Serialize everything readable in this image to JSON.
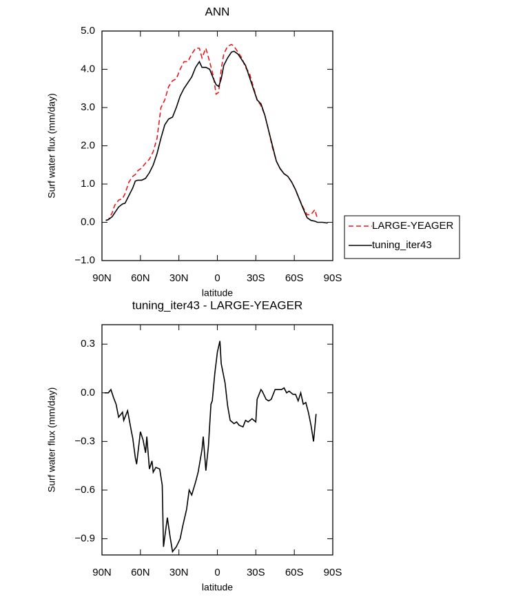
{
  "chart_data": [
    {
      "type": "line",
      "title": "ANN",
      "xlabel": "latitude",
      "ylabel": "Surf water flux (mm/day)",
      "x": [
        87,
        85,
        82,
        80,
        77,
        74,
        72,
        69,
        66,
        64,
        62,
        59,
        56,
        53,
        50,
        47,
        44,
        41,
        38,
        35,
        32,
        29,
        26,
        23,
        20,
        17,
        14,
        12,
        9,
        6,
        3,
        1,
        -1,
        -3,
        -5,
        -8,
        -11,
        -13,
        -16,
        -19,
        -22,
        -25,
        -28,
        -31,
        -34,
        -37,
        -40,
        -43,
        -46,
        -49,
        -52,
        -55,
        -58,
        -61,
        -64,
        -67,
        -70,
        -73,
        -76,
        -78,
        -82,
        -86
      ],
      "series": [
        {
          "name": "LARGE-YEAGER",
          "color": "#e8161b",
          "linestyle": "dashed",
          "values": [
            0.05,
            0.07,
            0.25,
            0.45,
            0.58,
            0.62,
            0.75,
            1.05,
            1.2,
            1.25,
            1.35,
            1.42,
            1.55,
            1.65,
            1.85,
            2.2,
            3.0,
            3.2,
            3.55,
            3.7,
            3.75,
            4.0,
            4.2,
            4.2,
            4.4,
            4.55,
            4.55,
            4.3,
            4.55,
            4.2,
            3.8,
            3.35,
            3.4,
            4.0,
            4.4,
            4.6,
            4.65,
            4.6,
            4.45,
            4.3,
            4.05,
            3.9,
            3.55,
            3.2,
            3.05,
            2.8,
            2.4,
            1.95,
            1.6,
            1.4,
            1.27,
            1.2,
            1.05,
            0.85,
            0.6,
            0.38,
            0.2,
            0.2,
            0.33,
            0.1,
            null,
            null
          ]
        },
        {
          "name": "tuning_iter43",
          "color": "#000000",
          "linestyle": "solid",
          "values": [
            0.05,
            0.07,
            0.15,
            0.25,
            0.4,
            0.48,
            0.5,
            0.7,
            0.9,
            1.08,
            1.1,
            1.1,
            1.15,
            1.3,
            1.5,
            1.8,
            2.2,
            2.55,
            2.7,
            2.75,
            3.0,
            3.3,
            3.5,
            3.65,
            3.8,
            4.05,
            4.2,
            4.05,
            4.05,
            4.0,
            3.75,
            3.6,
            3.55,
            3.75,
            4.1,
            4.3,
            4.45,
            4.47,
            4.4,
            4.25,
            4.1,
            3.8,
            3.5,
            3.2,
            3.1,
            2.8,
            2.4,
            2.0,
            1.6,
            1.4,
            1.27,
            1.2,
            1.05,
            0.85,
            0.6,
            0.35,
            0.12,
            0.05,
            0.03,
            0.0,
            0.0,
            -0.02
          ]
        }
      ],
      "xlim": [
        90,
        -90
      ],
      "xticks": [
        {
          "value": 90,
          "label": "90N"
        },
        {
          "value": 60,
          "label": "60N"
        },
        {
          "value": 30,
          "label": "30N"
        },
        0,
        {
          "value": -30,
          "label": "30S"
        },
        {
          "value": -60,
          "label": "60S"
        },
        {
          "value": -90,
          "label": "90S"
        }
      ],
      "ylim": [
        -1,
        5
      ],
      "yticks": [
        {
          "value": -1,
          "label": "−1.0"
        },
        {
          "value": 0,
          "label": "0.0"
        },
        {
          "value": 1,
          "label": "1.0"
        },
        {
          "value": 2,
          "label": "2.0"
        },
        {
          "value": 3,
          "label": "3.0"
        },
        {
          "value": 4,
          "label": "4.0"
        },
        {
          "value": 5,
          "label": "5.0"
        }
      ],
      "legend": "right"
    },
    {
      "type": "line",
      "title": "tuning_iter43 - LARGE-YEAGER",
      "xlabel": "latitude",
      "ylabel": "Surf water flux (mm/day)",
      "x": [
        88,
        85,
        83,
        81,
        79,
        77,
        74,
        73,
        70,
        67,
        66,
        64,
        63,
        60,
        58,
        56,
        55,
        53,
        51,
        50,
        48,
        45,
        43,
        42,
        39,
        37,
        35,
        32,
        29,
        27,
        24,
        22,
        20,
        17,
        15,
        12,
        11,
        9,
        7,
        5,
        4,
        2,
        0,
        -2,
        -3,
        -6,
        -8,
        -10,
        -13,
        -15,
        -17,
        -20,
        -22,
        -24,
        -27,
        -30,
        -31,
        -34,
        -35,
        -38,
        -40,
        -42,
        -45,
        -47,
        -50,
        -52,
        -54,
        -56,
        -59,
        -61,
        -63,
        -65,
        -67,
        -69,
        -71,
        -73,
        -75,
        -77
      ],
      "values": [
        0.0,
        0.0,
        0.02,
        -0.03,
        -0.07,
        -0.15,
        -0.12,
        -0.17,
        -0.11,
        -0.24,
        -0.28,
        -0.4,
        -0.44,
        -0.24,
        -0.29,
        -0.37,
        -0.27,
        -0.47,
        -0.42,
        -0.49,
        -0.46,
        -0.47,
        -0.57,
        -0.95,
        -0.77,
        -0.88,
        -0.98,
        -0.95,
        -0.9,
        -0.82,
        -0.72,
        -0.6,
        -0.63,
        -0.55,
        -0.49,
        -0.35,
        -0.27,
        -0.48,
        -0.33,
        -0.07,
        -0.05,
        0.12,
        0.25,
        0.32,
        0.18,
        0.06,
        -0.08,
        -0.17,
        -0.19,
        -0.18,
        -0.2,
        -0.21,
        -0.17,
        -0.18,
        -0.16,
        -0.18,
        -0.04,
        0.02,
        0.01,
        -0.04,
        -0.05,
        -0.04,
        0.02,
        0.02,
        0.02,
        0.03,
        0.0,
        0.01,
        -0.01,
        -0.01,
        -0.05,
        0.0,
        -0.07,
        -0.06,
        -0.12,
        -0.2,
        -0.3,
        -0.13
      ],
      "color": "#000000",
      "xlim": [
        90,
        -90
      ],
      "xticks": [
        {
          "value": 90,
          "label": "90N"
        },
        {
          "value": 60,
          "label": "60N"
        },
        {
          "value": 30,
          "label": "30N"
        },
        0,
        {
          "value": -30,
          "label": "30S"
        },
        {
          "value": -60,
          "label": "60S"
        },
        {
          "value": -90,
          "label": "90S"
        }
      ],
      "ylim": [
        -1.0,
        0.42
      ],
      "yticks": [
        {
          "value": -0.9,
          "label": "−0.9"
        },
        {
          "value": -0.6,
          "label": "−0.6"
        },
        {
          "value": -0.3,
          "label": "−0.3"
        },
        {
          "value": 0,
          "label": "0.0"
        },
        {
          "value": 0.3,
          "label": "0.3"
        }
      ]
    }
  ]
}
